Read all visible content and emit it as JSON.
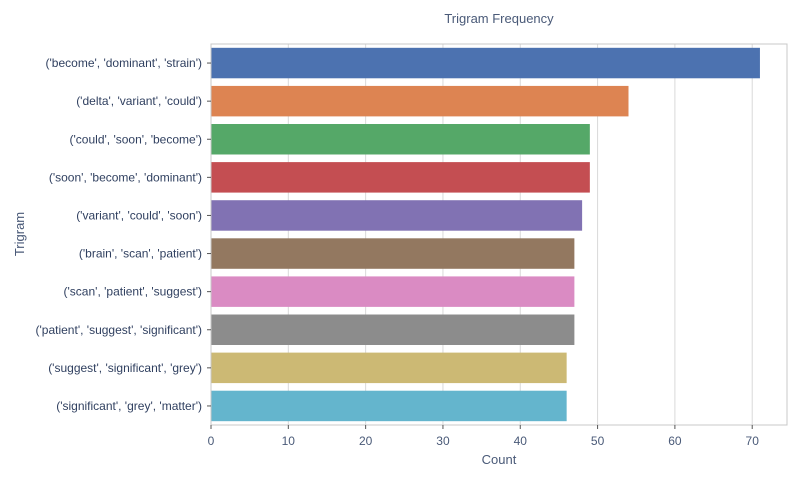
{
  "chart_data": {
    "type": "bar",
    "orientation": "horizontal",
    "title": "Trigram Frequency",
    "xlabel": "Count",
    "ylabel": "Trigram",
    "xlim": [
      0,
      74.5
    ],
    "xticks": [
      0,
      10,
      20,
      30,
      40,
      50,
      60,
      70
    ],
    "grid": true,
    "categories": [
      "('become', 'dominant', 'strain')",
      "('delta', 'variant', 'could')",
      "('could', 'soon', 'become')",
      "('soon', 'become', 'dominant')",
      "('variant', 'could', 'soon')",
      "('brain', 'scan', 'patient')",
      "('scan', 'patient', 'suggest')",
      "('patient', 'suggest', 'significant')",
      "('suggest', 'significant', 'grey')",
      "('significant', 'grey', 'matter')"
    ],
    "values": [
      71,
      54,
      49,
      49,
      48,
      47,
      47,
      47,
      46,
      46
    ],
    "colors": [
      "#4c72b0",
      "#dd8452",
      "#55a868",
      "#c44e52",
      "#8172b3",
      "#937860",
      "#da8bc3",
      "#8c8c8c",
      "#ccb974",
      "#64b5cd"
    ]
  }
}
